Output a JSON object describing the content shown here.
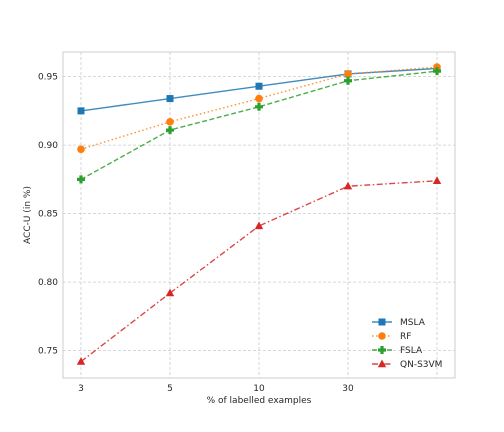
{
  "chart_data": {
    "type": "line",
    "title": "",
    "xlabel": "% of labelled examples",
    "ylabel": "ACC-U (in %)",
    "categories": [
      "3",
      "5",
      "10",
      "30",
      ""
    ],
    "ylim": [
      0.73,
      0.968
    ],
    "yticks": [
      "0.75",
      "0.80",
      "0.85",
      "0.90",
      "0.95"
    ],
    "grid": true,
    "legend_position": "lower-right",
    "series": [
      {
        "name": "MSLA",
        "values": [
          0.925,
          0.934,
          0.943,
          0.952,
          0.956
        ],
        "color": "#1f77b4",
        "marker": "square",
        "dash": "solid"
      },
      {
        "name": "RF",
        "values": [
          0.897,
          0.917,
          0.934,
          0.952,
          0.957
        ],
        "color": "#ff7f0e",
        "marker": "circle",
        "dash": "dotted"
      },
      {
        "name": "FSLA",
        "values": [
          0.875,
          0.911,
          0.928,
          0.947,
          0.954
        ],
        "color": "#2ca02c",
        "marker": "plus",
        "dash": "dashed"
      },
      {
        "name": "QN-S3VM",
        "values": [
          0.742,
          0.792,
          0.841,
          0.87,
          0.874
        ],
        "color": "#d62728",
        "marker": "triangle",
        "dash": "dashdot"
      }
    ]
  }
}
